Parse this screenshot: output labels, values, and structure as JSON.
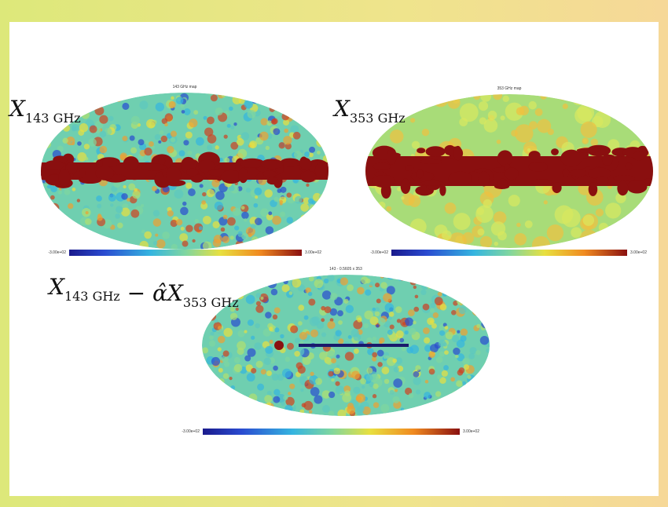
{
  "panels": [
    {
      "label": [
        {
          "base": "X",
          "subscript": "143 GHz"
        }
      ],
      "title": "143 GHz map",
      "colorbar": {
        "min_label": "-3.00e+02",
        "max_label": "3.00e+02"
      }
    },
    {
      "label": [
        {
          "base": "X",
          "subscript": "353 GHz"
        }
      ],
      "title": "353 GHz map",
      "colorbar": {
        "min_label": "-3.00e+02",
        "max_label": "3.00e+02"
      }
    },
    {
      "label": [
        {
          "base": "X",
          "subscript": "143 GHz"
        },
        {
          "base": " − α̂X",
          "subscript": "353 GHz"
        }
      ],
      "title": "143 - 0.5605 x 353",
      "colorbar": {
        "min_label": "-3.00e+02",
        "max_label": "3.00e+02"
      }
    }
  ]
}
